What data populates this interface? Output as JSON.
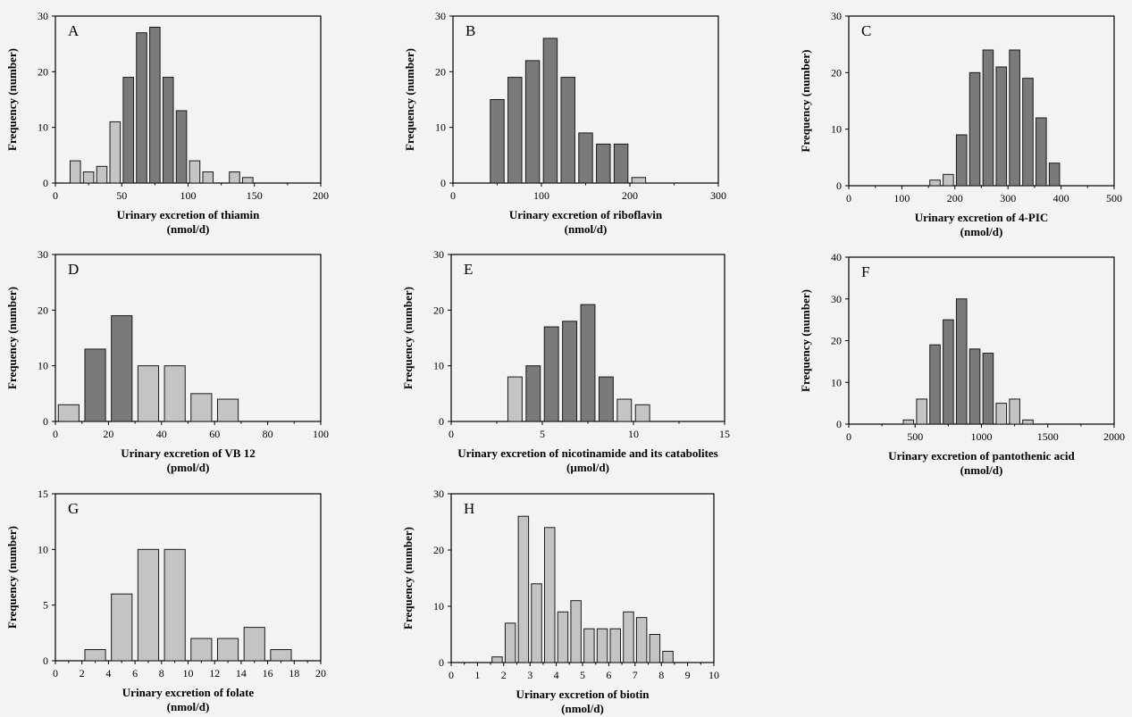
{
  "figure": {
    "colors": {
      "bar_light": "#c4c4c4",
      "bar_dark": "#7a7a7a",
      "bar_edge": "#1a1a1a",
      "axis": "#000000",
      "background": "#f3f3f1"
    }
  },
  "chart_data": [
    {
      "panel": "A",
      "type": "bar",
      "ylabel": "Frequency (number)",
      "xlabel": [
        "Urinary excretion of thiamin",
        "(nmol/d)"
      ],
      "xlim": [
        0,
        200
      ],
      "ylim": [
        0,
        30
      ],
      "xticks": [
        "0",
        "50",
        "100",
        "150",
        "200"
      ],
      "yticks": [
        "0",
        "10",
        "20",
        "30"
      ],
      "bin_width": 10,
      "x": [
        15,
        25,
        35,
        45,
        55,
        65,
        75,
        85,
        95,
        105,
        115,
        125,
        135,
        145
      ],
      "values": [
        4,
        2,
        3,
        11,
        19,
        27,
        28,
        19,
        13,
        4,
        2,
        0,
        2,
        1
      ],
      "shade": [
        "light",
        "light",
        "light",
        "light",
        "dark",
        "dark",
        "dark",
        "dark",
        "dark",
        "light",
        "light",
        "light",
        "light",
        "light"
      ]
    },
    {
      "panel": "B",
      "type": "bar",
      "ylabel": "Frequency (number)",
      "xlabel": [
        "Urinary excretion of riboflavin",
        "(nmol/d)"
      ],
      "xlim": [
        0,
        300
      ],
      "ylim": [
        0,
        30
      ],
      "xticks": [
        "0",
        "100",
        "200",
        "300"
      ],
      "yticks": [
        "0",
        "10",
        "20",
        "30"
      ],
      "bin_width": 20,
      "x": [
        50,
        70,
        90,
        110,
        130,
        150,
        170,
        190,
        210
      ],
      "values": [
        15,
        19,
        22,
        26,
        19,
        9,
        7,
        7,
        1
      ],
      "shade": [
        "dark",
        "dark",
        "dark",
        "dark",
        "dark",
        "dark",
        "dark",
        "dark",
        "light"
      ]
    },
    {
      "panel": "C",
      "type": "bar",
      "ylabel": "Frequency (number)",
      "xlabel": [
        "Urinary excretion of 4-PIC",
        "(nmol/d)"
      ],
      "xlim": [
        0,
        500
      ],
      "ylim": [
        0,
        30
      ],
      "xticks": [
        "0",
        "100",
        "200",
        "300",
        "400",
        "500"
      ],
      "yticks": [
        "0",
        "10",
        "20",
        "30"
      ],
      "bin_width": 25,
      "x": [
        162.5,
        187.5,
        212.5,
        237.5,
        262.5,
        287.5,
        312.5,
        337.5,
        362.5,
        387.5
      ],
      "values": [
        1,
        2,
        9,
        20,
        24,
        21,
        24,
        19,
        12,
        4
      ],
      "shade": [
        "light",
        "light",
        "dark",
        "dark",
        "dark",
        "dark",
        "dark",
        "dark",
        "dark",
        "dark"
      ]
    },
    {
      "panel": "D",
      "type": "bar",
      "ylabel": "Frequency (number)",
      "xlabel": [
        "Urinary excretion of VB 12",
        "(pmol/d)"
      ],
      "xlim": [
        0,
        100
      ],
      "ylim": [
        0,
        30
      ],
      "xticks": [
        "0",
        "20",
        "40",
        "60",
        "80",
        "100"
      ],
      "yticks": [
        "0",
        "10",
        "20",
        "30"
      ],
      "bin_width": 10,
      "x": [
        5,
        15,
        25,
        35,
        45,
        55,
        65
      ],
      "values": [
        3,
        13,
        19,
        10,
        10,
        5,
        4
      ],
      "shade": [
        "light",
        "dark",
        "dark",
        "light",
        "light",
        "light",
        "light"
      ]
    },
    {
      "panel": "E",
      "type": "bar",
      "ylabel": "Frequency (number)",
      "xlabel": [
        "Urinary excretion of nicotinamide and its catabolites",
        "(µmol/d)"
      ],
      "xlim": [
        0,
        15
      ],
      "ylim": [
        0,
        30
      ],
      "xticks": [
        "0",
        "5",
        "10",
        "15"
      ],
      "yticks": [
        "0",
        "10",
        "20",
        "30"
      ],
      "bin_width": 1,
      "x": [
        3.5,
        4.5,
        5.5,
        6.5,
        7.5,
        8.5,
        9.5,
        10.5
      ],
      "values": [
        8,
        10,
        17,
        18,
        21,
        8,
        4,
        3
      ],
      "shade": [
        "light",
        "dark",
        "dark",
        "dark",
        "dark",
        "dark",
        "light",
        "light"
      ]
    },
    {
      "panel": "F",
      "type": "bar",
      "ylabel": "Frequency (number)",
      "xlabel": [
        "Urinary excretion of pantothenic acid",
        "(nmol/d)"
      ],
      "xlim": [
        0,
        2000
      ],
      "ylim": [
        0,
        40
      ],
      "xticks": [
        "0",
        "500",
        "1000",
        "1500",
        "2000"
      ],
      "yticks": [
        "0",
        "10",
        "20",
        "30",
        "40"
      ],
      "bin_width": 100,
      "x": [
        450,
        550,
        650,
        750,
        850,
        950,
        1050,
        1150,
        1250,
        1350
      ],
      "values": [
        1,
        6,
        19,
        25,
        30,
        18,
        17,
        5,
        6,
        1
      ],
      "shade": [
        "light",
        "light",
        "dark",
        "dark",
        "dark",
        "dark",
        "dark",
        "light",
        "light",
        "light"
      ]
    },
    {
      "panel": "G",
      "type": "bar",
      "ylabel": "Frequency (number)",
      "xlabel": [
        "Urinary excretion of folate",
        "(nmol/d)"
      ],
      "xlim": [
        0,
        20
      ],
      "ylim": [
        0,
        15
      ],
      "xticks": [
        "0",
        "2",
        "4",
        "6",
        "8",
        "10",
        "12",
        "14",
        "16",
        "18",
        "20"
      ],
      "yticks": [
        "0",
        "5",
        "10",
        "15"
      ],
      "bin_width": 2,
      "x": [
        3,
        5,
        7,
        9,
        11,
        13,
        15,
        17
      ],
      "values": [
        1,
        6,
        10,
        10,
        2,
        2,
        3,
        1
      ],
      "shade": [
        "light",
        "light",
        "light",
        "light",
        "light",
        "light",
        "light",
        "light"
      ]
    },
    {
      "panel": "H",
      "type": "bar",
      "ylabel": "Frequency (number)",
      "xlabel": [
        "Urinary excretion of biotin",
        "(nmol/d)"
      ],
      "xlim": [
        0,
        10
      ],
      "ylim": [
        0,
        30
      ],
      "xticks": [
        "0",
        "1",
        "2",
        "3",
        "4",
        "5",
        "6",
        "7",
        "8",
        "9",
        "10"
      ],
      "yticks": [
        "0",
        "10",
        "20",
        "30"
      ],
      "bin_width": 0.5,
      "x": [
        1.75,
        2.25,
        2.75,
        3.25,
        3.75,
        4.25,
        4.75,
        5.25,
        5.75,
        6.25,
        6.75,
        7.25,
        7.75,
        8.25
      ],
      "values": [
        1,
        7,
        26,
        14,
        24,
        9,
        11,
        6,
        6,
        6,
        9,
        8,
        5,
        2
      ],
      "shade": [
        "light",
        "light",
        "light",
        "light",
        "light",
        "light",
        "light",
        "light",
        "light",
        "light",
        "light",
        "light",
        "light",
        "light"
      ]
    }
  ]
}
